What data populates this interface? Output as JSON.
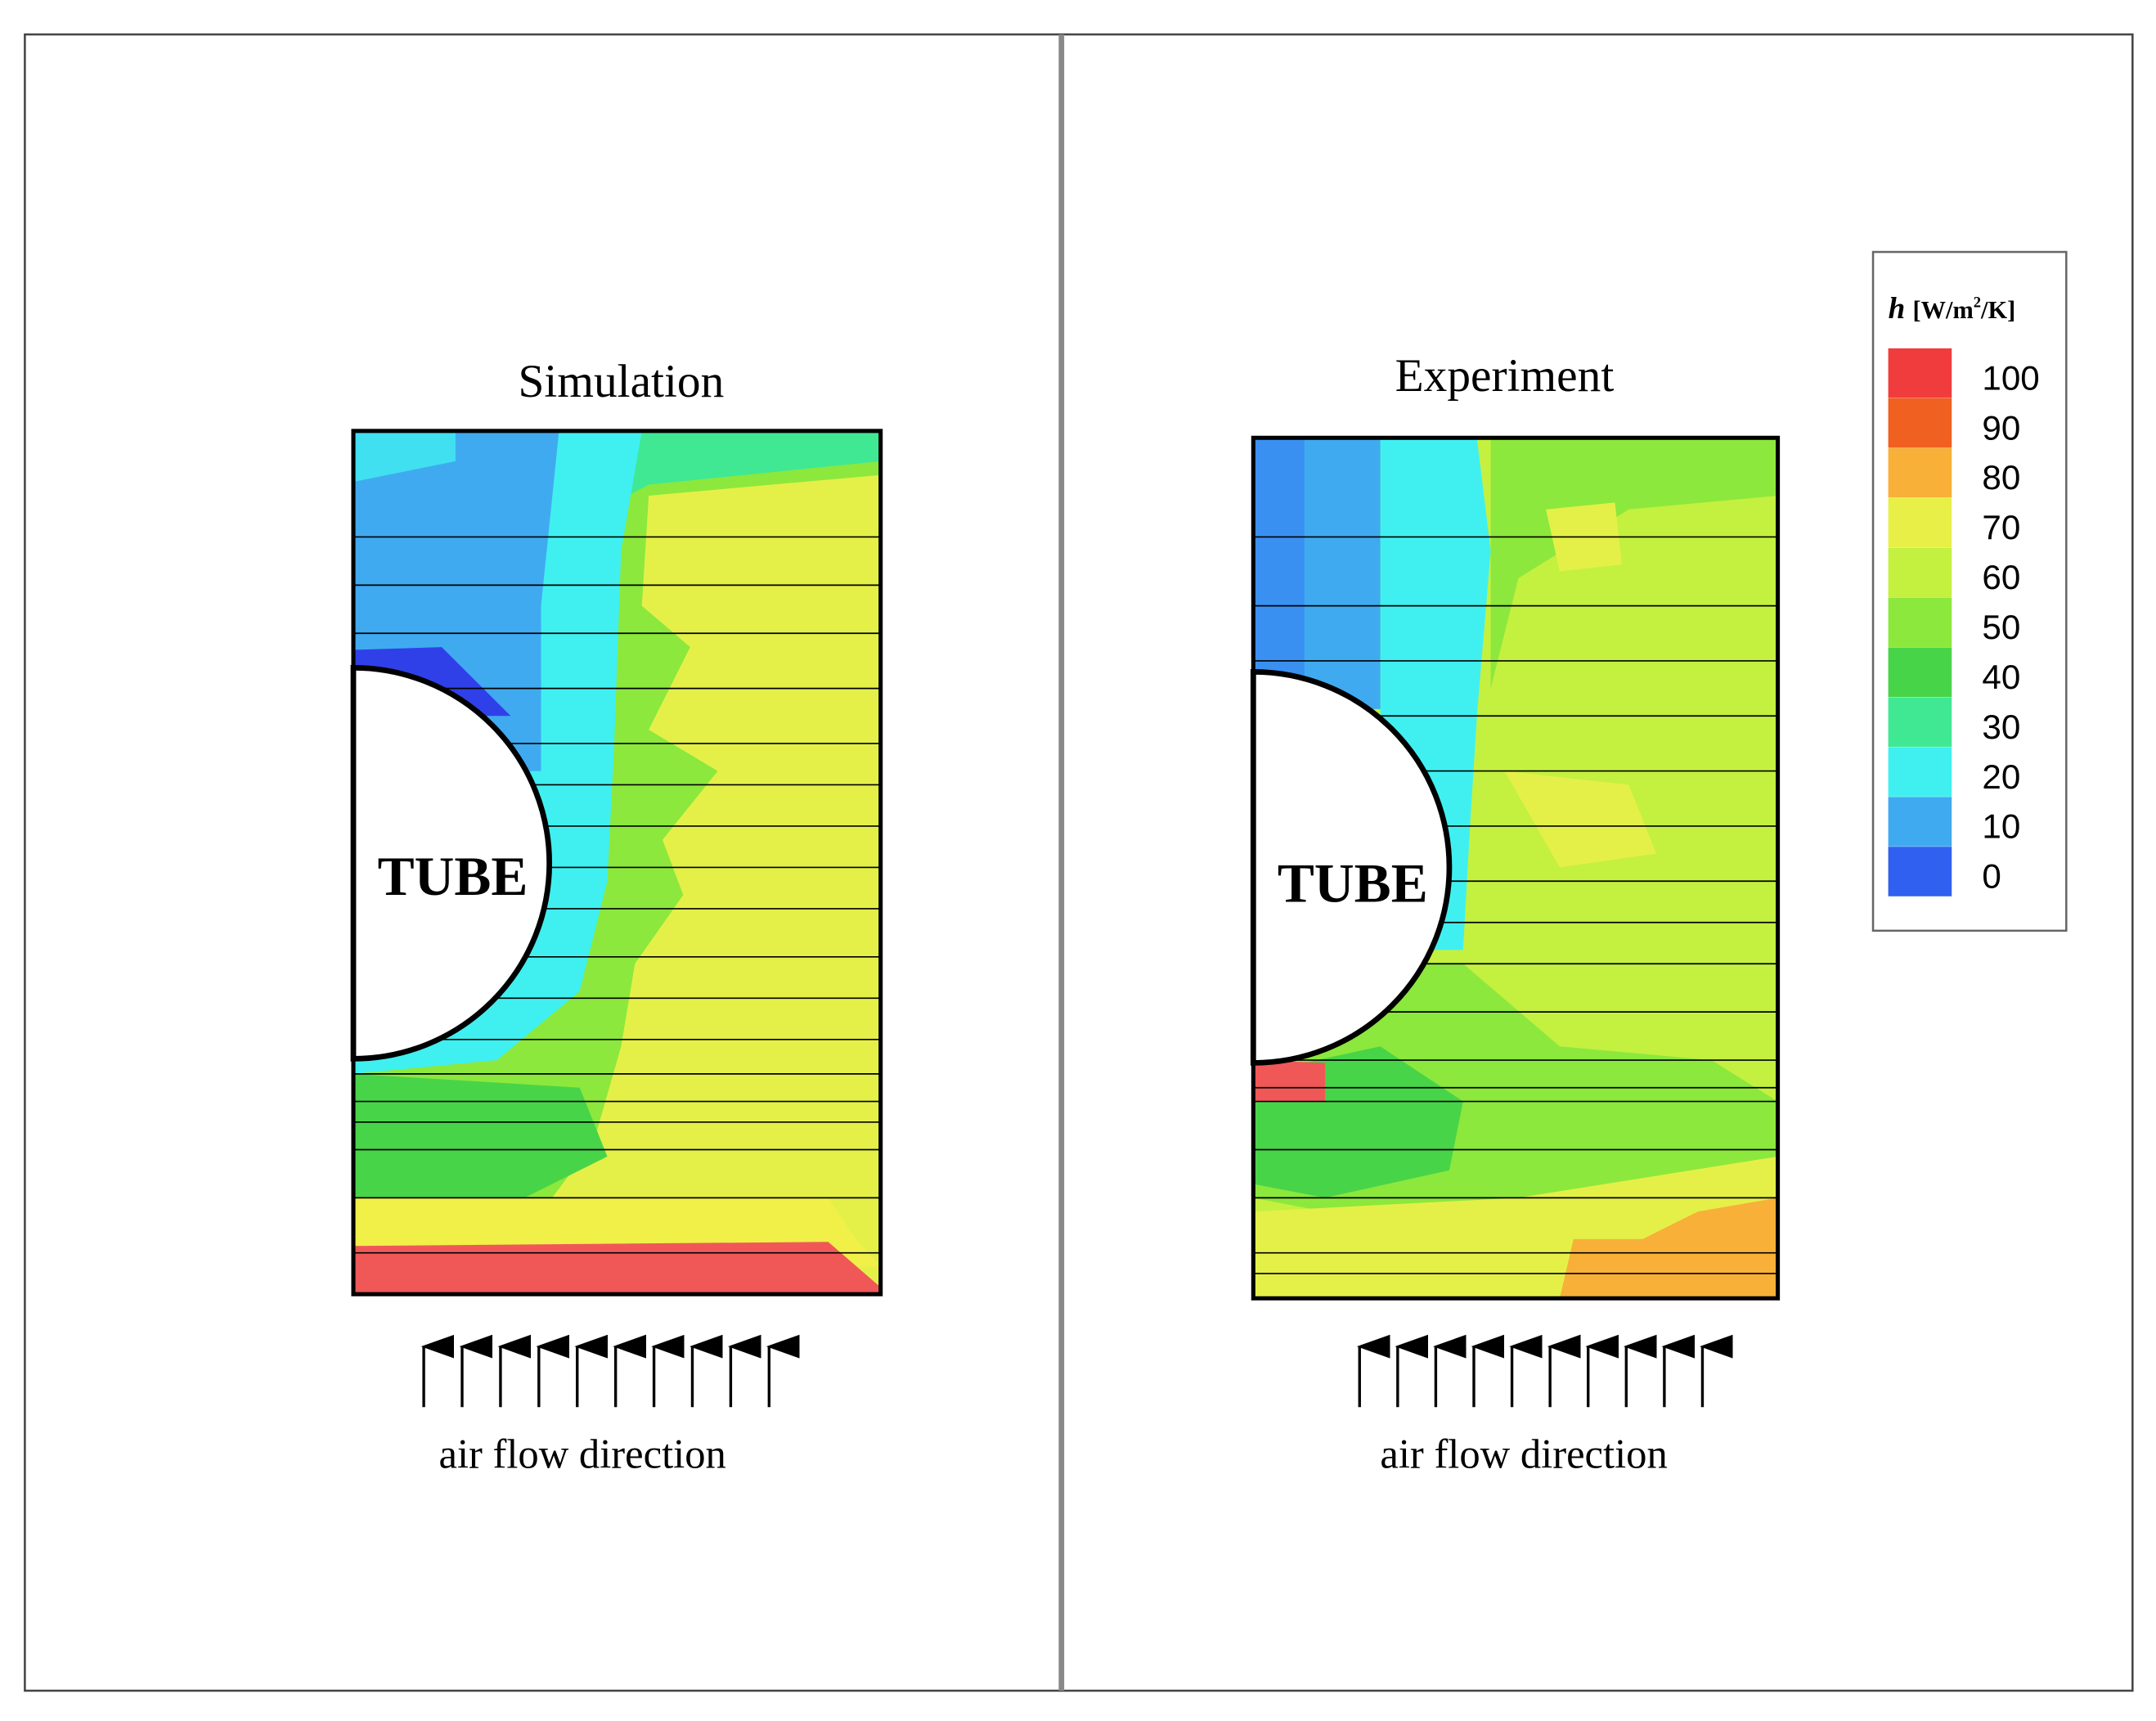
{
  "panels": [
    {
      "title": "Simulation",
      "tube_label": "TUBE",
      "caption": "air flow direction"
    },
    {
      "title": "Experiment",
      "tube_label": "TUBE",
      "caption": "air flow direction"
    }
  ],
  "legend": {
    "symbol": "h",
    "unit_open": "[W/m",
    "unit_sup": "2",
    "unit_close": "/K]",
    "levels": [
      {
        "value": 100,
        "color": "#f03c3c"
      },
      {
        "value": 90,
        "color": "#f06020"
      },
      {
        "value": 80,
        "color": "#f8b038"
      },
      {
        "value": 70,
        "color": "#e8f048"
      },
      {
        "value": 60,
        "color": "#c4f040"
      },
      {
        "value": 50,
        "color": "#8ce83c"
      },
      {
        "value": 40,
        "color": "#48d448"
      },
      {
        "value": 30,
        "color": "#40e894"
      },
      {
        "value": 20,
        "color": "#40f0f0"
      },
      {
        "value": 10,
        "color": "#40aaf0"
      },
      {
        "value": 0,
        "color": "#3060f0"
      }
    ]
  }
}
